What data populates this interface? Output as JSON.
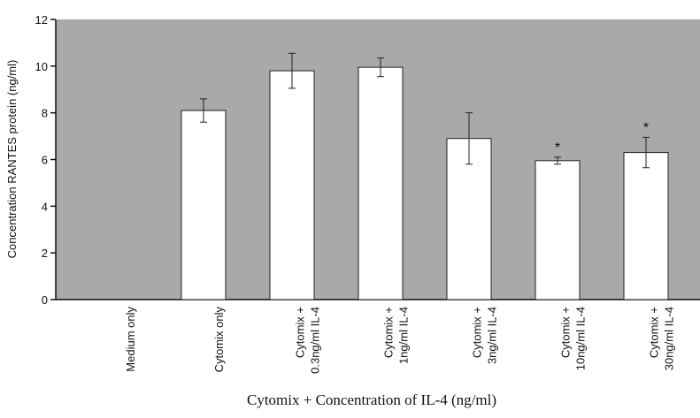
{
  "chart_data": {
    "type": "bar",
    "y_label": "Concentration RANTES protein (ng/ml)",
    "x_label": "Cytomix + Concentration of IL-4 (ng/ml)",
    "categories": [
      [
        "Medium only"
      ],
      [
        "Cytomix only"
      ],
      [
        "Cytomix +",
        "0.3ng/ml IL-4"
      ],
      [
        "Cytomix +",
        "1ng/ml IL-4"
      ],
      [
        "Cytomix +",
        "3ng/ml IL-4"
      ],
      [
        "Cytomix +",
        "10ng/ml IL-4"
      ],
      [
        "Cytomix +",
        "30ng/ml IL-4"
      ]
    ],
    "values": [
      0,
      8.1,
      9.8,
      9.95,
      6.9,
      5.95,
      6.3
    ],
    "errors": [
      null,
      0.5,
      0.75,
      0.4,
      1.1,
      0.15,
      0.65
    ],
    "significance": [
      null,
      null,
      null,
      null,
      null,
      "*",
      "*"
    ],
    "color": "#ffffff",
    "background": "#a9a9a9",
    "ylim": [
      0,
      12
    ],
    "yticks": [
      0,
      2,
      4,
      6,
      8,
      10,
      12
    ]
  }
}
